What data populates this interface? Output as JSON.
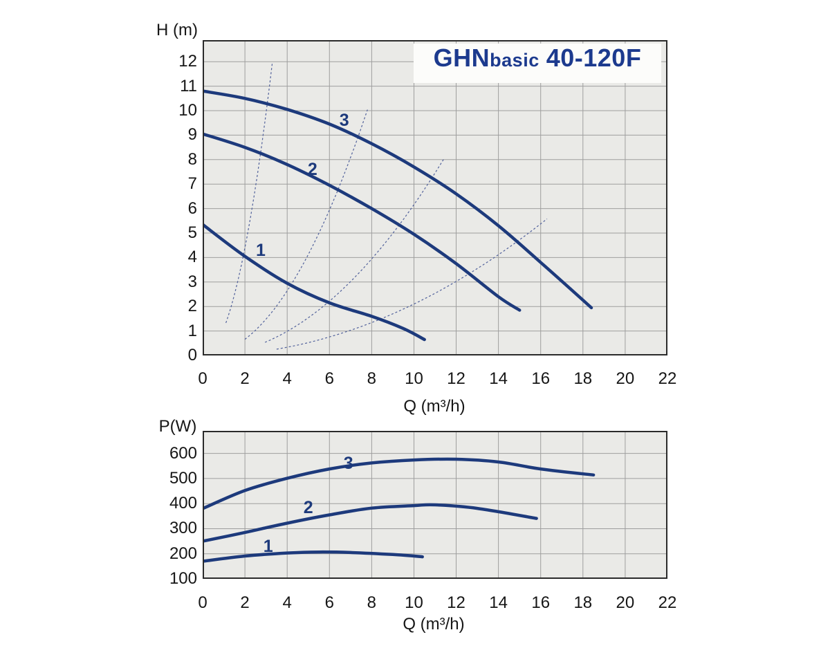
{
  "colors": {
    "page_bg": "#ffffff",
    "plot_bg": "#eaeae7",
    "grid": "#9e9e9e",
    "border": "#2a2a2a",
    "curve": "#1d3a7c",
    "curve_label": "#1d3a7c",
    "title": "#1c3a8e",
    "system_curve": "#51619b",
    "axis_text": "#161616"
  },
  "chart_data": [
    {
      "type": "line",
      "title": "GHNbasic 40-120F",
      "title_parts": {
        "brand": "GHN",
        "variant": "basic",
        "model": "40-120F"
      },
      "xlabel": "Q (m³/h)",
      "ylabel": "H (m)",
      "xlim": [
        0,
        22
      ],
      "ylim": [
        0,
        12.88
      ],
      "x_ticks": [
        0,
        2,
        4,
        6,
        8,
        10,
        12,
        14,
        16,
        18,
        20,
        22
      ],
      "y_ticks": [
        0,
        1,
        2,
        3,
        4,
        5,
        6,
        7,
        8,
        9,
        10,
        11,
        12
      ],
      "grid": true,
      "legend": "none",
      "series": [
        {
          "name": "1",
          "label_pos": [
            2.75,
            4.3
          ],
          "points": [
            [
              0,
              5.35
            ],
            [
              2,
              4.05
            ],
            [
              4,
              2.95
            ],
            [
              6,
              2.15
            ],
            [
              8,
              1.6
            ],
            [
              9.5,
              1.1
            ],
            [
              10.5,
              0.65
            ]
          ]
        },
        {
          "name": "2",
          "label_pos": [
            5.2,
            7.6
          ],
          "points": [
            [
              0,
              9.05
            ],
            [
              2,
              8.5
            ],
            [
              4,
              7.8
            ],
            [
              6,
              6.95
            ],
            [
              8,
              6.0
            ],
            [
              10,
              4.95
            ],
            [
              12,
              3.75
            ],
            [
              14,
              2.4
            ],
            [
              15,
              1.85
            ]
          ]
        },
        {
          "name": "3",
          "label_pos": [
            6.7,
            9.6
          ],
          "points": [
            [
              0,
              10.8
            ],
            [
              2,
              10.5
            ],
            [
              4,
              10.05
            ],
            [
              6,
              9.45
            ],
            [
              8,
              8.65
            ],
            [
              10,
              7.7
            ],
            [
              12,
              6.6
            ],
            [
              14,
              5.3
            ],
            [
              16,
              3.8
            ],
            [
              18.4,
              1.95
            ]
          ]
        }
      ],
      "system_curves": [
        {
          "k": 1.1,
          "q_start": 1.1,
          "q_end": 3.3
        },
        {
          "k": 0.165,
          "q_start": 2.0,
          "q_end": 7.8
        },
        {
          "k": 0.0616,
          "q_start": 2.95,
          "q_end": 11.4
        },
        {
          "k": 0.021,
          "q_start": 3.5,
          "q_end": 16.3
        }
      ]
    },
    {
      "type": "line",
      "title": "",
      "xlabel": "Q (m³/h)",
      "ylabel": "P(W)",
      "xlim": [
        0,
        22
      ],
      "ylim": [
        100,
        690
      ],
      "x_ticks": [
        0,
        2,
        4,
        6,
        8,
        10,
        12,
        14,
        16,
        18,
        20,
        22
      ],
      "y_ticks": [
        100,
        200,
        300,
        400,
        500,
        600
      ],
      "grid": true,
      "legend": "none",
      "series": [
        {
          "name": "1",
          "label_pos": [
            3.1,
            230
          ],
          "points": [
            [
              0,
              170
            ],
            [
              2,
              191
            ],
            [
              4,
              203
            ],
            [
              5.5,
              207
            ],
            [
              7,
              205
            ],
            [
              9,
              197
            ],
            [
              10.4,
              188
            ]
          ]
        },
        {
          "name": "2",
          "label_pos": [
            5.0,
            385
          ],
          "points": [
            [
              0,
              250
            ],
            [
              2,
              285
            ],
            [
              4,
              322
            ],
            [
              6,
              355
            ],
            [
              8,
              382
            ],
            [
              10,
              392
            ],
            [
              11,
              395
            ],
            [
              13,
              381
            ],
            [
              15.8,
              341
            ]
          ]
        },
        {
          "name": "3",
          "label_pos": [
            6.9,
            560
          ],
          "points": [
            [
              0,
              380
            ],
            [
              2,
              452
            ],
            [
              4,
              501
            ],
            [
              6,
              538
            ],
            [
              8,
              562
            ],
            [
              10,
              574
            ],
            [
              12,
              577
            ],
            [
              14,
              566
            ],
            [
              16,
              538
            ],
            [
              18.5,
              514
            ]
          ]
        }
      ]
    }
  ]
}
